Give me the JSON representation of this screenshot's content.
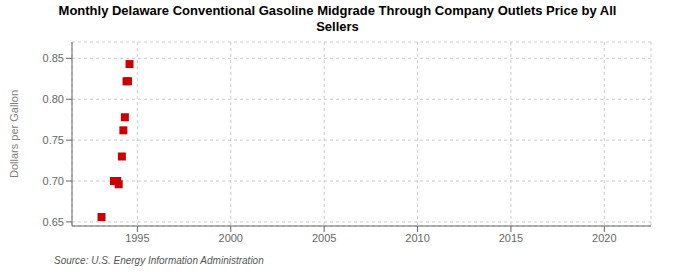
{
  "chart_data": {
    "type": "scatter",
    "title": "Monthly Delaware Conventional Gasoline Midgrade Through Company Outlets Price by All\nSellers",
    "ylabel": "Dollars per Gallon",
    "annotations": [
      "Source: U.S. Energy Information Administration"
    ],
    "x": [
      1993.08,
      1993.75,
      1993.92,
      1994.0,
      1994.17,
      1994.25,
      1994.33,
      1994.42,
      1994.5,
      1994.58
    ],
    "values": [
      0.656,
      0.7,
      0.7,
      0.696,
      0.73,
      0.762,
      0.778,
      0.822,
      0.822,
      0.843
    ],
    "color": "#cc0000",
    "marker": "square",
    "xlim": [
      1991.5,
      2022.5
    ],
    "xticks": [
      1995,
      2000,
      2005,
      2010,
      2015,
      2020
    ],
    "ylim": [
      0.645,
      0.87
    ],
    "yticks": [
      0.65,
      {
        "value": 0.7,
        "label": "0.70"
      },
      0.75,
      {
        "value": 0.8,
        "label": "0.80"
      },
      0.85
    ],
    "grid": true
  }
}
